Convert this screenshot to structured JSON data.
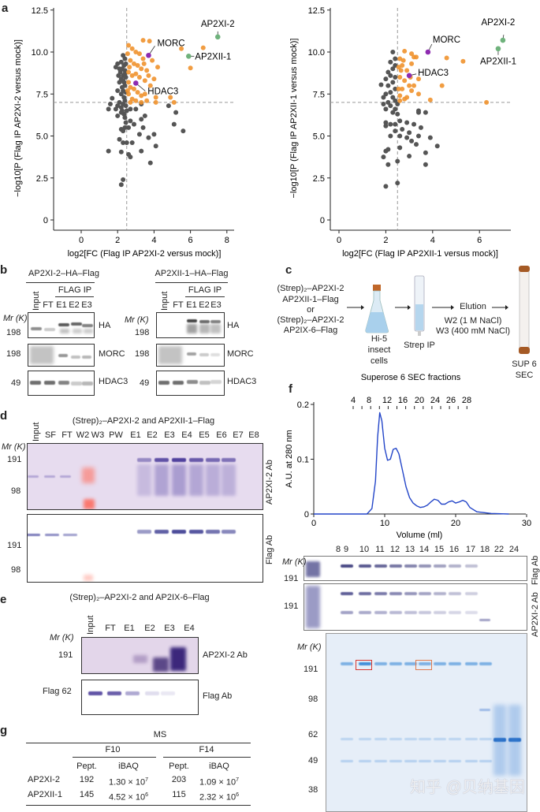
{
  "panels": {
    "a": "a",
    "b": "b",
    "c": "c",
    "d": "d",
    "e": "e",
    "f": "f",
    "g": "g"
  },
  "chart_data": [
    {
      "type": "scatter",
      "xlabel": "log2[FC (Flag IP AP2XI-2 versus mock)]",
      "ylabel": "−log10[P (Flag IP AP2XI-2 versus mock)]",
      "xticks": [
        "0",
        "2",
        "4",
        "6",
        "8"
      ],
      "yticks": [
        "0",
        "2.5",
        "5.0",
        "7.5",
        "10.0",
        "12.5"
      ],
      "xlim": [
        -1.5,
        8.5
      ],
      "ylim": [
        0,
        12.5
      ],
      "thresholds": {
        "x": 2.5,
        "y": 7
      },
      "colors": {
        "enriched": "#f0922e",
        "other": "#555555",
        "bait": "#6fb27c",
        "complex": "#8e2bb0"
      },
      "grid": false,
      "highlights": [
        {
          "name": "AP2XI-2",
          "x": 7.5,
          "y": 10.9,
          "group": "bait"
        },
        {
          "name": "AP2XII-1",
          "x": 5.9,
          "y": 9.75,
          "group": "bait"
        },
        {
          "name": "MORC",
          "x": 3.7,
          "y": 9.8,
          "group": "complex"
        },
        {
          "name": "HDAC3",
          "x": 3.0,
          "y": 8.15,
          "group": "complex"
        }
      ],
      "enriched": [
        [
          5.5,
          10.2
        ],
        [
          6.7,
          10.25
        ],
        [
          6.0,
          9.05
        ],
        [
          4.2,
          9.1
        ],
        [
          3.4,
          10.7
        ],
        [
          3.75,
          10.65
        ],
        [
          4.1,
          7.3
        ],
        [
          4.9,
          7.3
        ],
        [
          5.1,
          7.0
        ],
        [
          4.1,
          7.0
        ],
        [
          3.3,
          7.0
        ],
        [
          3.5,
          7.5
        ],
        [
          2.6,
          10.4
        ],
        [
          2.8,
          10.2
        ],
        [
          3.0,
          10.0
        ],
        [
          3.2,
          9.9
        ],
        [
          3.4,
          9.6
        ],
        [
          2.7,
          9.5
        ],
        [
          2.9,
          9.3
        ],
        [
          3.1,
          9.2
        ],
        [
          3.3,
          9.0
        ],
        [
          3.6,
          8.9
        ],
        [
          2.6,
          8.8
        ],
        [
          2.8,
          8.6
        ],
        [
          3.0,
          8.7
        ],
        [
          3.2,
          8.5
        ],
        [
          3.5,
          8.3
        ],
        [
          3.8,
          8.0
        ],
        [
          2.6,
          8.2
        ],
        [
          2.7,
          7.9
        ],
        [
          2.9,
          7.8
        ],
        [
          3.1,
          7.6
        ],
        [
          3.3,
          7.4
        ],
        [
          2.6,
          7.5
        ],
        [
          2.8,
          7.2
        ],
        [
          3.0,
          7.1
        ],
        [
          3.6,
          7.1
        ],
        [
          2.7,
          7.0
        ],
        [
          3.9,
          9.5
        ],
        [
          3.7,
          8.6
        ],
        [
          2.55,
          9.9
        ],
        [
          2.65,
          9.1
        ],
        [
          3.45,
          9.3
        ],
        [
          4.0,
          8.4
        ],
        [
          2.55,
          7.7
        ]
      ],
      "other": [
        [
          2.3,
          9.8
        ],
        [
          2.4,
          9.6
        ],
        [
          2.2,
          9.4
        ],
        [
          2.35,
          9.2
        ],
        [
          2.25,
          9.0
        ],
        [
          2.4,
          8.9
        ],
        [
          2.15,
          8.8
        ],
        [
          2.3,
          8.6
        ],
        [
          2.45,
          8.5
        ],
        [
          2.2,
          8.4
        ],
        [
          2.35,
          8.2
        ],
        [
          2.4,
          8.0
        ],
        [
          2.25,
          7.9
        ],
        [
          2.3,
          7.7
        ],
        [
          2.45,
          7.6
        ],
        [
          2.2,
          7.5
        ],
        [
          2.35,
          7.3
        ],
        [
          2.4,
          7.1
        ],
        [
          2.3,
          6.9
        ],
        [
          2.45,
          6.8
        ],
        [
          2.2,
          6.7
        ],
        [
          2.5,
          6.5
        ],
        [
          2.35,
          6.3
        ],
        [
          2.4,
          6.1
        ],
        [
          2.0,
          9.3
        ],
        [
          1.9,
          9.1
        ],
        [
          2.1,
          9.0
        ],
        [
          2.05,
          8.6
        ],
        [
          2.1,
          8.2
        ],
        [
          2.0,
          7.7
        ],
        [
          2.45,
          9.3
        ],
        [
          2.3,
          8.3
        ],
        [
          2.4,
          8.7
        ],
        [
          2.25,
          6.5
        ],
        [
          2.45,
          5.8
        ],
        [
          1.7,
          7.25
        ],
        [
          1.6,
          6.9
        ],
        [
          1.5,
          6.6
        ],
        [
          1.9,
          6.6
        ],
        [
          2.0,
          6.8
        ],
        [
          2.1,
          7.0
        ],
        [
          2.0,
          6.2
        ],
        [
          2.2,
          6.4
        ],
        [
          2.7,
          6.6
        ],
        [
          3.0,
          6.6
        ],
        [
          3.3,
          6.9
        ],
        [
          4.8,
          6.8
        ],
        [
          5.2,
          6.4
        ],
        [
          3.5,
          6.2
        ],
        [
          2.7,
          5.9
        ],
        [
          2.9,
          5.7
        ],
        [
          3.3,
          6.0
        ],
        [
          2.4,
          5.5
        ],
        [
          2.6,
          5.5
        ],
        [
          2.2,
          5.4
        ],
        [
          2.3,
          5.3
        ],
        [
          3.4,
          5.5
        ],
        [
          4.0,
          5.1
        ],
        [
          5.6,
          5.3
        ],
        [
          5.1,
          5.7
        ],
        [
          3.2,
          5.1
        ],
        [
          3.7,
          4.9
        ],
        [
          2.1,
          4.8
        ],
        [
          2.3,
          4.6
        ],
        [
          2.5,
          4.6
        ],
        [
          2.8,
          4.6
        ],
        [
          4.1,
          4.4
        ],
        [
          3.3,
          4.1
        ],
        [
          1.5,
          4.1
        ],
        [
          2.2,
          4.05
        ],
        [
          2.6,
          3.9
        ],
        [
          2.7,
          3.75
        ],
        [
          3.8,
          3.4
        ],
        [
          2.3,
          2.4
        ],
        [
          2.2,
          2.1
        ]
      ]
    },
    {
      "type": "scatter",
      "xlabel": "log2[FC (Flag IP AP2XII-1 versus mock)]",
      "ylabel": "−log10[P (Flag IP AP2XII-1 versus mock)]",
      "xticks": [
        "0",
        "2",
        "4",
        "6"
      ],
      "yticks": [
        "0",
        "2.5",
        "5.0",
        "7.5",
        "10.0",
        "12.5"
      ],
      "xlim": [
        -0.4,
        7.3
      ],
      "ylim": [
        0,
        12.5
      ],
      "thresholds": {
        "x": 2.5,
        "y": 7
      },
      "colors": {
        "enriched": "#f0922e",
        "other": "#555555",
        "bait": "#6fb27c",
        "complex": "#8e2bb0"
      },
      "grid": false,
      "highlights": [
        {
          "name": "AP2XI-2",
          "x": 7.0,
          "y": 10.7,
          "group": "bait"
        },
        {
          "name": "AP2XII-1",
          "x": 6.8,
          "y": 10.2,
          "group": "bait"
        },
        {
          "name": "MORC",
          "x": 3.8,
          "y": 10.0,
          "group": "complex"
        },
        {
          "name": "HDAC3",
          "x": 3.0,
          "y": 8.6,
          "group": "complex"
        }
      ],
      "enriched": [
        [
          6.3,
          7.0
        ],
        [
          4.6,
          9.65
        ],
        [
          5.3,
          9.45
        ],
        [
          4.4,
          8.0
        ],
        [
          3.9,
          7.15
        ],
        [
          3.4,
          7.5
        ],
        [
          3.2,
          8.0
        ],
        [
          3.4,
          8.4
        ],
        [
          3.1,
          9.3
        ],
        [
          3.2,
          9.7
        ],
        [
          3.3,
          9.7
        ],
        [
          2.8,
          10.05
        ],
        [
          3.1,
          9.9
        ],
        [
          2.6,
          9.6
        ],
        [
          2.7,
          9.2
        ],
        [
          2.9,
          8.9
        ],
        [
          2.6,
          8.5
        ],
        [
          2.8,
          8.3
        ],
        [
          3.0,
          8.0
        ],
        [
          2.7,
          7.8
        ],
        [
          2.6,
          7.4
        ],
        [
          2.9,
          7.3
        ],
        [
          3.1,
          7.7
        ],
        [
          2.6,
          7.1
        ],
        [
          2.8,
          7.2
        ],
        [
          2.65,
          8.9
        ],
        [
          3.05,
          8.5
        ],
        [
          2.75,
          9.5
        ],
        [
          2.55,
          9.1
        ],
        [
          2.55,
          7.8
        ]
      ],
      "other": [
        [
          2.3,
          10.0
        ],
        [
          2.4,
          9.6
        ],
        [
          2.2,
          9.4
        ],
        [
          2.4,
          9.2
        ],
        [
          2.3,
          9.0
        ],
        [
          2.1,
          8.8
        ],
        [
          2.2,
          8.6
        ],
        [
          2.4,
          8.5
        ],
        [
          2.0,
          8.4
        ],
        [
          2.3,
          8.2
        ],
        [
          2.1,
          8.0
        ],
        [
          2.4,
          7.8
        ],
        [
          2.2,
          7.6
        ],
        [
          2.0,
          7.5
        ],
        [
          2.3,
          7.3
        ],
        [
          2.4,
          7.1
        ],
        [
          2.1,
          7.0
        ],
        [
          2.2,
          6.8
        ],
        [
          2.4,
          6.6
        ],
        [
          2.3,
          6.4
        ],
        [
          1.8,
          8.05
        ],
        [
          1.9,
          7.3
        ],
        [
          1.9,
          6.9
        ],
        [
          2.0,
          6.6
        ],
        [
          2.5,
          6.9
        ],
        [
          2.5,
          6.3
        ],
        [
          3.4,
          6.5
        ],
        [
          3.7,
          6.4
        ],
        [
          3.4,
          6.4
        ],
        [
          2.0,
          5.8
        ],
        [
          2.2,
          5.7
        ],
        [
          2.4,
          5.7
        ],
        [
          2.6,
          5.9
        ],
        [
          2.9,
          5.8
        ],
        [
          3.2,
          5.7
        ],
        [
          3.5,
          5.5
        ],
        [
          2.0,
          5.6
        ],
        [
          2.4,
          5.3
        ],
        [
          2.7,
          5.4
        ],
        [
          3.0,
          5.2
        ],
        [
          2.2,
          5.0
        ],
        [
          2.6,
          5.0
        ],
        [
          2.9,
          4.9
        ],
        [
          3.4,
          5.0
        ],
        [
          3.9,
          4.9
        ],
        [
          3.1,
          4.7
        ],
        [
          3.3,
          4.5
        ],
        [
          4.2,
          4.4
        ],
        [
          2.6,
          4.3
        ],
        [
          2.1,
          4.2
        ],
        [
          2.0,
          4.1
        ],
        [
          3.7,
          4.0
        ],
        [
          1.9,
          3.75
        ],
        [
          3.0,
          3.8
        ],
        [
          2.1,
          3.3
        ],
        [
          2.5,
          3.5
        ],
        [
          3.7,
          3.3
        ],
        [
          2.5,
          2.2
        ],
        [
          2.0,
          2.0
        ]
      ]
    },
    {
      "type": "line",
      "title": "Superose 6 SEC fractions",
      "xlabel": "Volume (ml)",
      "ylabel": "A.U. at 280 nm",
      "xticks": [
        "0",
        "10",
        "20",
        "30"
      ],
      "yticks": [
        "0",
        "0.1",
        "0.2"
      ],
      "xlim": [
        0,
        30
      ],
      "ylim": [
        0,
        0.2
      ],
      "fraction_ticks": [
        "4",
        "8",
        "12",
        "16",
        "20",
        "24",
        "26",
        "28"
      ],
      "color": "#2345c8",
      "x": [
        0,
        7.5,
        8.2,
        8.7,
        9.0,
        9.3,
        9.6,
        10.0,
        10.4,
        10.8,
        11.2,
        11.6,
        12.0,
        12.5,
        13,
        13.5,
        14,
        14.5,
        15,
        15.5,
        16,
        16.5,
        17,
        17.5,
        18,
        18.5,
        19,
        19.5,
        20,
        20.5,
        21,
        21.5,
        22,
        23,
        25,
        27.5
      ],
      "y": [
        0,
        0,
        0.01,
        0.06,
        0.14,
        0.185,
        0.17,
        0.12,
        0.098,
        0.1,
        0.118,
        0.12,
        0.11,
        0.08,
        0.05,
        0.03,
        0.02,
        0.015,
        0.012,
        0.013,
        0.016,
        0.022,
        0.027,
        0.025,
        0.018,
        0.018,
        0.022,
        0.024,
        0.02,
        0.022,
        0.025,
        0.022,
        0.012,
        0.004,
        0.001,
        0
      ]
    }
  ],
  "b": {
    "left": {
      "title": "AP2XI-2–HA–Flag",
      "ip": "FLAG IP",
      "lanes": [
        "Input",
        "FT",
        "E1",
        "E2",
        "E3"
      ],
      "mr": "Mr (K)",
      "markers": [
        "198",
        "198",
        "49"
      ],
      "blots": [
        "HA",
        "MORC",
        "HDAC3"
      ]
    },
    "right": {
      "title": "AP2XII-1–HA–Flag",
      "ip": "FLAG IP",
      "lanes": [
        "Input",
        "FT",
        "E1",
        "E2",
        "E3"
      ],
      "mr": "Mr (K)",
      "markers": [
        "198",
        "198",
        "49"
      ],
      "blots": [
        "HA",
        "MORC",
        "HDAC3"
      ]
    }
  },
  "c": {
    "constructs": [
      "(Strep)₂–AP2XI-2",
      "AP2XII-1–Flag",
      "or",
      "(Strep)₂–AP2XI-2",
      "AP2IX-6–Flag"
    ],
    "cells": [
      "Hi-5",
      "insect",
      "cells"
    ],
    "strep": "Strep IP",
    "elution": "Elution",
    "washes": [
      "W2 (1 M NaCl)",
      "W3 (400 mM NaCl)"
    ],
    "column": [
      "SUP 6",
      "SEC"
    ]
  },
  "d": {
    "title": "(Strep)₂–AP2XI-2 and AP2XII-1–Flag",
    "lanes": [
      "Input",
      "SF",
      "FT",
      "W2",
      "W3",
      "PW",
      "E1",
      "E2",
      "E3",
      "E4",
      "E5",
      "E6",
      "E7",
      "E8"
    ],
    "mr": "Mr (K)",
    "markers_top": [
      "191",
      "98"
    ],
    "markers_bottom": [
      "191",
      "98"
    ],
    "blots": [
      "AP2XI-2 Ab",
      "Flag Ab"
    ]
  },
  "e": {
    "title": "(Strep)₂–AP2XI-2 and AP2IX-6–Flag",
    "lanes": [
      "Input",
      "FT",
      "E1",
      "E2",
      "E3",
      "E4"
    ],
    "mr": "Mr (K)",
    "markers": [
      "191",
      "Flag 62"
    ],
    "blots": [
      "AP2XI-2 Ab",
      "Flag Ab"
    ]
  },
  "f": {
    "fractions": [
      "8",
      "9",
      "10",
      "11",
      "12",
      "13",
      "14",
      "15",
      "16",
      "17",
      "18",
      "22",
      "24"
    ],
    "mr": "Mr (K)",
    "blot_markers": [
      "191",
      "191"
    ],
    "blots": [
      "Flag Ab",
      "AP2XI-2 Ab"
    ],
    "gel_markers": [
      "191",
      "98",
      "62",
      "49",
      "38"
    ],
    "highlight_colors": [
      "#d8372f",
      "#e07b4f"
    ]
  },
  "g": {
    "header": "MS",
    "groups": [
      "F10",
      "F14"
    ],
    "columns": [
      "Pept.",
      "iBAQ",
      "Pept.",
      "iBAQ"
    ],
    "rows": [
      {
        "name": "AP2XI-2",
        "cells": [
          {
            "v": "192"
          },
          {
            "b": "1.30 × 10",
            "e": "7"
          },
          {
            "v": "203"
          },
          {
            "b": "1.09 × 10",
            "e": "7"
          }
        ]
      },
      {
        "name": "AP2XII-1",
        "cells": [
          {
            "v": "145"
          },
          {
            "b": "4.52 × 10",
            "e": "6"
          },
          {
            "v": "115"
          },
          {
            "b": "2.32 × 10",
            "e": "6"
          }
        ]
      }
    ]
  },
  "watermark": "知乎 @贝纳基因"
}
